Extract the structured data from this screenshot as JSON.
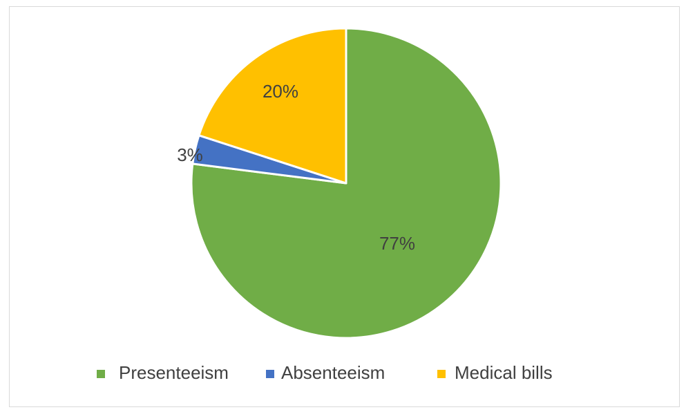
{
  "chart_data": {
    "type": "pie",
    "title": "",
    "slices": [
      {
        "label": "Presenteeism",
        "value": 77,
        "display": "77%",
        "color": "#70ad47"
      },
      {
        "label": "Absenteeism",
        "value": 3,
        "display": "3%",
        "color": "#4472c4"
      },
      {
        "label": "Medical bills",
        "value": 20,
        "display": "20%",
        "color": "#ffc000"
      }
    ],
    "start_angle_deg": 0,
    "direction": "clockwise",
    "legend_position": "bottom",
    "data_labels": true
  }
}
